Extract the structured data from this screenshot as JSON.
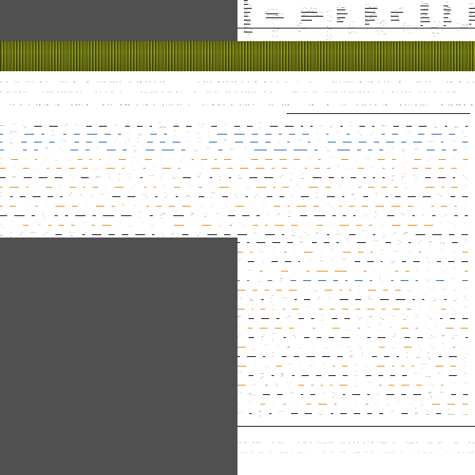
{
  "colors": {
    "olive_dark": "#2a2f0b",
    "olive_mid": "#7c8d15",
    "olive_light": "#b6b825",
    "gray_block": "#505050",
    "text_primary": "#111111",
    "accent_blue": "#1d68b4",
    "accent_orange": "#e98c17"
  }
}
